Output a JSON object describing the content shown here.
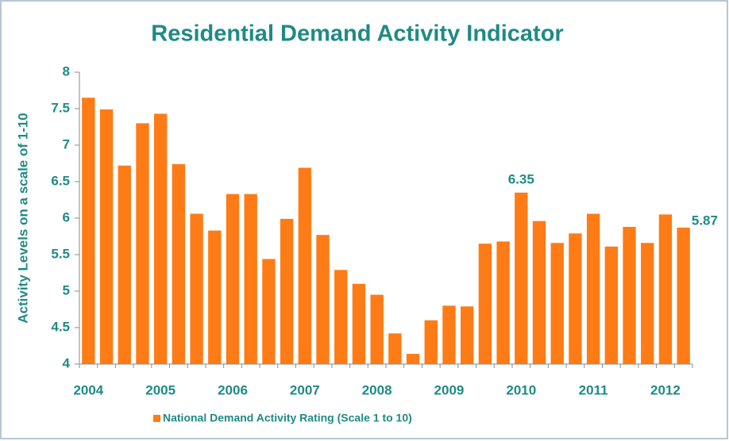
{
  "chart_data": {
    "type": "bar",
    "title": "Residential Demand Activity Indicator",
    "y_label": "Activity Levels on a scale of 1-10",
    "categories": [
      "2004",
      null,
      null,
      null,
      "2005",
      null,
      null,
      null,
      "2006",
      null,
      null,
      null,
      "2007",
      null,
      null,
      null,
      "2008",
      null,
      null,
      null,
      "2009",
      null,
      null,
      null,
      "2010",
      null,
      null,
      null,
      "2011",
      null,
      null,
      null,
      "2012",
      null
    ],
    "series": [
      {
        "name": "National Demand Activity Rating (Scale 1 to 10)",
        "color": "#ff7b16",
        "values": [
          7.65,
          7.49,
          6.72,
          7.3,
          7.43,
          6.74,
          6.06,
          5.83,
          6.33,
          6.33,
          5.44,
          5.99,
          6.69,
          5.77,
          5.29,
          5.1,
          4.95,
          4.42,
          4.14,
          4.6,
          4.8,
          4.79,
          5.65,
          5.68,
          6.35,
          5.96,
          5.66,
          5.79,
          6.06,
          5.61,
          5.88,
          5.66,
          6.05,
          5.87
        ]
      }
    ],
    "value_labels": [
      null,
      null,
      null,
      null,
      null,
      null,
      null,
      null,
      null,
      null,
      null,
      null,
      null,
      null,
      null,
      null,
      null,
      null,
      null,
      null,
      null,
      null,
      null,
      null,
      "6.35",
      null,
      null,
      null,
      null,
      null,
      null,
      null,
      null,
      "5.87"
    ],
    "ylim": [
      4,
      8
    ],
    "yticks": [
      4,
      4.5,
      5,
      5.5,
      6,
      6.5,
      7,
      7.5,
      8
    ],
    "grid": false,
    "legend": "bottom"
  }
}
